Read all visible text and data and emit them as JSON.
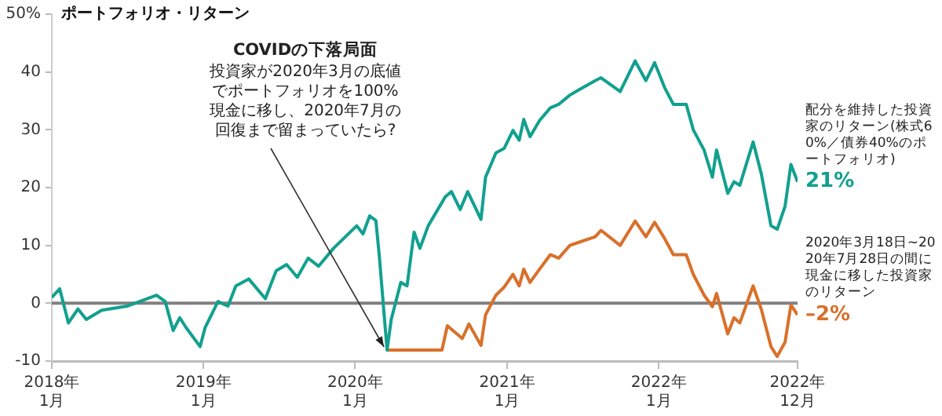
{
  "chart_data": {
    "type": "line",
    "title": "ポートフォリオ・リターン",
    "xlim": [
      "2018-01-01",
      "2022-12-01"
    ],
    "xticks": [
      {
        "value": "2018-01-01",
        "label": "2018年\n1月"
      },
      {
        "value": "2019-01-01",
        "label": "2019年\n1月"
      },
      {
        "value": "2020-01-01",
        "label": "2020年\n1月"
      },
      {
        "value": "2021-01-01",
        "label": "2021年\n1月"
      },
      {
        "value": "2022-01-01",
        "label": "2022年\n1月"
      },
      {
        "value": "2022-12-01",
        "label": "2022年\n12月"
      }
    ],
    "ylim": [
      -10,
      50
    ],
    "yticks": [
      -10,
      0,
      10,
      20,
      30,
      40,
      {
        "value": 50,
        "label": "50%"
      }
    ],
    "grid": false,
    "legend": false,
    "marker": "none",
    "line_style": "solid",
    "ref_lines": [
      {
        "axis": "y",
        "value": 0,
        "color": "#808080"
      }
    ],
    "annotations": [
      "COVIDの下落局面",
      {
        "text": "投資家が2020年3月の底値でポートフォリオを100%現金に移し、2020年7月の回復まで留まっていたら?",
        "x": "2020-03-18",
        "y": -8.1
      }
    ],
    "series": [
      {
        "name": "配分を維持した投資家のリターン(株式60%／債券40%のポートフォリオ)",
        "color": "#12a08f",
        "x": [
          "2018-01-01",
          "2018-01-20",
          "2018-02-10",
          "2018-03-05",
          "2018-03-25",
          "2018-05-01",
          "2018-07-01",
          "2018-09-10",
          "2018-10-01",
          "2018-10-20",
          "2018-11-05",
          "2018-11-20",
          "2018-12-24",
          "2019-01-05",
          "2019-02-05",
          "2019-03-01",
          "2019-03-20",
          "2019-04-20",
          "2019-05-30",
          "2019-06-25",
          "2019-07-20",
          "2019-08-15",
          "2019-09-10",
          "2019-10-05",
          "2019-11-10",
          "2020-01-05",
          "2020-01-20",
          "2020-02-05",
          "2020-02-20",
          "2020-02-28",
          "2020-03-18",
          "2020-03-28",
          "2020-04-20",
          "2020-05-05",
          "2020-05-22",
          "2020-06-05",
          "2020-06-25",
          "2020-08-05",
          "2020-08-20",
          "2020-09-10",
          "2020-09-28",
          "2020-10-30",
          "2020-11-10",
          "2020-12-05",
          "2020-12-25",
          "2021-01-15",
          "2021-01-30",
          "2021-02-10",
          "2021-02-25",
          "2021-03-20",
          "2021-04-15",
          "2021-05-05",
          "2021-06-01",
          "2021-06-25",
          "2021-08-01",
          "2021-08-15",
          "2021-09-30",
          "2021-11-05",
          "2021-12-01",
          "2021-12-22",
          "2022-01-15",
          "2022-02-05",
          "2022-03-08",
          "2022-03-25",
          "2022-04-20",
          "2022-05-10",
          "2022-05-20",
          "2022-06-16",
          "2022-07-01",
          "2022-07-15",
          "2022-08-16",
          "2022-09-05",
          "2022-09-28",
          "2022-10-13",
          "2022-11-01",
          "2022-11-15",
          "2022-12-01"
        ],
        "values": [
          1.0,
          2.5,
          -3.4,
          -1.0,
          -2.8,
          -1.2,
          -0.5,
          1.4,
          0.3,
          -4.7,
          -2.5,
          -4.2,
          -7.5,
          -4.2,
          0.3,
          -0.5,
          3.0,
          4.2,
          0.8,
          5.6,
          6.7,
          4.5,
          7.8,
          6.4,
          9.5,
          13.4,
          12.0,
          15.1,
          14.3,
          8.4,
          -8.1,
          -2.8,
          3.6,
          3.0,
          12.3,
          9.5,
          13.4,
          18.4,
          19.3,
          16.2,
          19.3,
          14.5,
          21.8,
          26.0,
          26.8,
          29.9,
          28.2,
          31.8,
          28.8,
          31.6,
          33.8,
          34.4,
          36.0,
          37.0,
          38.5,
          39.0,
          36.6,
          41.9,
          38.5,
          41.6,
          37.3,
          34.4,
          34.4,
          30.0,
          26.5,
          21.8,
          26.5,
          19.0,
          21.0,
          20.4,
          27.9,
          22.3,
          13.4,
          12.8,
          16.8,
          24.0,
          21.0
        ],
        "value_labels": [
          null,
          null,
          null,
          null,
          null,
          null,
          null,
          null,
          null,
          null,
          null,
          null,
          null,
          null,
          null,
          null,
          null,
          null,
          null,
          null,
          null,
          null,
          null,
          null,
          null,
          null,
          null,
          null,
          null,
          null,
          null,
          null,
          null,
          null,
          null,
          null,
          null,
          null,
          null,
          null,
          null,
          null,
          null,
          null,
          null,
          null,
          null,
          null,
          null,
          null,
          null,
          null,
          null,
          null,
          null,
          null,
          null,
          null,
          null,
          null,
          null,
          null,
          null,
          null,
          null,
          null,
          null,
          null,
          null,
          null,
          null,
          null,
          null,
          null,
          null,
          null,
          "21%"
        ]
      },
      {
        "name": "2020年3月18日~2020年7月28日の間に現金に移した投資家のリターン",
        "color": "#d9702a",
        "x": [
          "2020-03-18",
          "2020-07-28",
          "2020-08-10",
          "2020-09-15",
          "2020-10-01",
          "2020-10-30",
          "2020-11-10",
          "2020-12-05",
          "2020-12-25",
          "2021-01-15",
          "2021-01-30",
          "2021-02-10",
          "2021-02-25",
          "2021-03-20",
          "2021-04-15",
          "2021-05-05",
          "2021-06-01",
          "2021-06-25",
          "2021-08-01",
          "2021-08-15",
          "2021-09-30",
          "2021-11-05",
          "2021-12-01",
          "2021-12-22",
          "2022-01-15",
          "2022-02-05",
          "2022-03-08",
          "2022-03-25",
          "2022-04-20",
          "2022-05-10",
          "2022-05-20",
          "2022-06-16",
          "2022-07-01",
          "2022-07-15",
          "2022-08-16",
          "2022-09-05",
          "2022-09-28",
          "2022-10-13",
          "2022-11-01",
          "2022-11-15",
          "2022-12-01"
        ],
        "values": [
          -8.1,
          -8.1,
          -3.9,
          -6.1,
          -3.6,
          -7.3,
          -2.0,
          1.4,
          2.8,
          5.0,
          3.0,
          5.9,
          3.6,
          5.9,
          8.4,
          7.8,
          10.0,
          10.6,
          11.5,
          12.6,
          10.0,
          14.2,
          11.5,
          14.0,
          11.2,
          8.4,
          8.4,
          5.0,
          1.4,
          -0.6,
          1.7,
          -5.3,
          -2.5,
          -3.4,
          3.0,
          -1.1,
          -7.5,
          -9.2,
          -6.7,
          -0.3,
          -2.0
        ],
        "value_labels": [
          null,
          null,
          null,
          null,
          null,
          null,
          null,
          null,
          null,
          null,
          null,
          null,
          null,
          null,
          null,
          null,
          null,
          null,
          null,
          null,
          null,
          null,
          null,
          null,
          null,
          null,
          null,
          null,
          null,
          null,
          null,
          null,
          null,
          null,
          null,
          null,
          null,
          null,
          null,
          null,
          "–2%"
        ]
      }
    ]
  }
}
